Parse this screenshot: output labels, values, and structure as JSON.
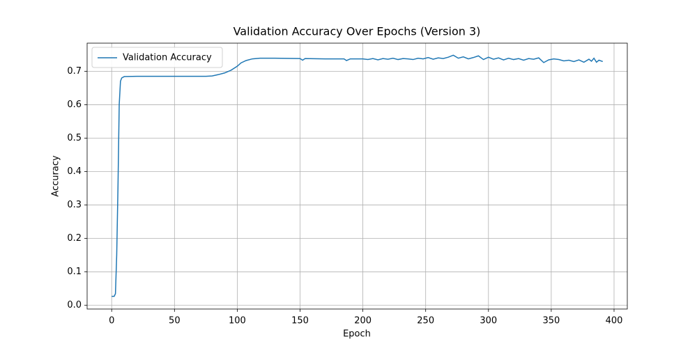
{
  "chart_data": {
    "type": "line",
    "title": "Validation Accuracy Over Epochs (Version 3)",
    "x_label": "Epoch",
    "y_label": "Accuracy",
    "x": [
      0,
      1,
      2,
      3,
      4,
      5,
      6,
      7,
      8,
      10,
      20,
      40,
      60,
      75,
      80,
      85,
      90,
      95,
      100,
      103,
      107,
      112,
      118,
      130,
      150,
      152,
      154,
      170,
      185,
      187,
      190,
      200,
      204,
      208,
      212,
      216,
      220,
      224,
      228,
      232,
      236,
      240,
      244,
      248,
      252,
      256,
      260,
      264,
      268,
      272,
      276,
      280,
      284,
      288,
      292,
      296,
      300,
      304,
      308,
      312,
      316,
      320,
      324,
      328,
      332,
      336,
      340,
      344,
      348,
      352,
      356,
      360,
      364,
      368,
      372,
      376,
      380,
      382,
      384,
      386,
      388,
      391
    ],
    "series": [
      {
        "name": "Validation Accuracy",
        "color": "#1f77b4",
        "values": [
          0.027,
          0.027,
          0.027,
          0.035,
          0.15,
          0.35,
          0.6,
          0.67,
          0.68,
          0.684,
          0.685,
          0.685,
          0.685,
          0.685,
          0.686,
          0.69,
          0.695,
          0.703,
          0.715,
          0.725,
          0.732,
          0.737,
          0.739,
          0.739,
          0.738,
          0.733,
          0.738,
          0.737,
          0.737,
          0.732,
          0.737,
          0.737,
          0.735,
          0.738,
          0.734,
          0.738,
          0.736,
          0.739,
          0.735,
          0.738,
          0.737,
          0.735,
          0.739,
          0.737,
          0.741,
          0.736,
          0.74,
          0.738,
          0.742,
          0.748,
          0.739,
          0.743,
          0.737,
          0.741,
          0.746,
          0.735,
          0.742,
          0.736,
          0.74,
          0.734,
          0.739,
          0.735,
          0.738,
          0.733,
          0.738,
          0.736,
          0.74,
          0.726,
          0.734,
          0.737,
          0.735,
          0.731,
          0.733,
          0.729,
          0.734,
          0.727,
          0.736,
          0.73,
          0.739,
          0.727,
          0.733,
          0.729
        ]
      }
    ],
    "xlim": [
      -19.55,
      410.55
    ],
    "ylim": [
      -0.011,
      0.784
    ],
    "xticks": [
      0,
      50,
      100,
      150,
      200,
      250,
      300,
      350,
      400
    ],
    "yticks": [
      {
        "value": 0,
        "label": "0.0"
      },
      0.1,
      0.2,
      0.3,
      0.4,
      0.5,
      0.6,
      0.7
    ],
    "grid": true,
    "legend": "upper-left"
  }
}
